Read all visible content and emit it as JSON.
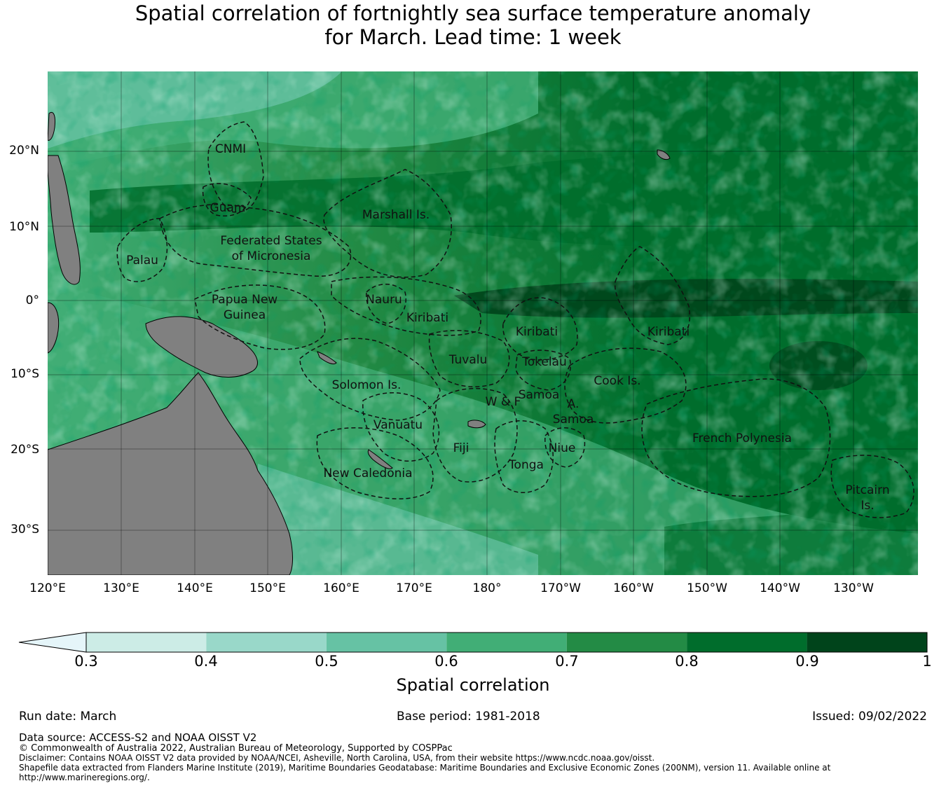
{
  "title": {
    "line1": "Spatial correlation of fortnightly sea surface temperature anomaly",
    "line2": "for March. Lead time: 1 week"
  },
  "map": {
    "lat_labels": [
      "20°N",
      "10°N",
      "0°",
      "10°S",
      "20°S",
      "30°S"
    ],
    "lon_labels": [
      "120°E",
      "130°E",
      "140°E",
      "150°E",
      "160°E",
      "170°E",
      "180°",
      "170°W",
      "160°W",
      "150°W",
      "140°W",
      "130°W"
    ],
    "regions": [
      {
        "id": "cnmi",
        "lines": [
          "CNMI"
        ]
      },
      {
        "id": "guam",
        "lines": [
          "Guam"
        ]
      },
      {
        "id": "marshall-is",
        "lines": [
          "Marshall Is."
        ]
      },
      {
        "id": "fsm",
        "lines": [
          "Federated States",
          "of Micronesia"
        ]
      },
      {
        "id": "palau",
        "lines": [
          "Palau"
        ]
      },
      {
        "id": "png",
        "lines": [
          "Papua New",
          "Guinea"
        ]
      },
      {
        "id": "nauru",
        "lines": [
          "Nauru"
        ]
      },
      {
        "id": "kiribati-west",
        "lines": [
          "Kiribati"
        ]
      },
      {
        "id": "kiribati-central",
        "lines": [
          "Kiribati"
        ]
      },
      {
        "id": "kiribati-east",
        "lines": [
          "Kiribati"
        ]
      },
      {
        "id": "tuvalu",
        "lines": [
          "Tuvalu"
        ]
      },
      {
        "id": "tokelau",
        "lines": [
          "Tokelau"
        ]
      },
      {
        "id": "cook-is",
        "lines": [
          "Cook Is."
        ]
      },
      {
        "id": "solomon-is",
        "lines": [
          "Solomon Is."
        ]
      },
      {
        "id": "samoa",
        "lines": [
          "Samoa"
        ]
      },
      {
        "id": "w-and-f",
        "lines": [
          "W & F"
        ]
      },
      {
        "id": "a-samoa",
        "lines": [
          "A.",
          "Samoa"
        ]
      },
      {
        "id": "vanuatu",
        "lines": [
          "Vanuatu"
        ]
      },
      {
        "id": "fiji",
        "lines": [
          "Fiji"
        ]
      },
      {
        "id": "niue",
        "lines": [
          "Niue"
        ]
      },
      {
        "id": "tonga",
        "lines": [
          "Tonga"
        ]
      },
      {
        "id": "new-caledonia",
        "lines": [
          "New Caledonia"
        ]
      },
      {
        "id": "french-polynesia",
        "lines": [
          "French Polynesia"
        ]
      },
      {
        "id": "pitcairn-is",
        "lines": [
          "Pitcairn",
          "Is."
        ]
      }
    ]
  },
  "colorbar": {
    "label": "Spatial correlation",
    "ticks": [
      "0.3",
      "0.4",
      "0.5",
      "0.6",
      "0.7",
      "0.8",
      "0.9",
      "1"
    ],
    "colors": [
      "#e5f5f9",
      "#ccece6",
      "#99d8c9",
      "#66c2a4",
      "#41ae76",
      "#238b45",
      "#006d2c",
      "#00441b"
    ],
    "land_color": "#808080"
  },
  "info": {
    "run_date": "Run date: March",
    "base_period": "Base period: 1981-2018",
    "issued": "Issued: 09/02/2022"
  },
  "footer": {
    "data_source": "Data source: ACCESS-S2 and NOAA OISST V2",
    "copyright": "© Commonwealth of Australia 2022, Australian Bureau of Meteorology, Supported by COSPPac",
    "disclaimer": "Disclaimer: Contains NOAA OISST V2 data provided by NOAA/NCEI, Asheville, North Carolina, USA, from their website https://www.ncdc.noaa.gov/oisst.",
    "shapefile_1": "Shapefile data extracted from Flanders Marine Institute (2019), Maritime Boundaries Geodatabase: Maritime Boundaries and Exclusive Economic Zones (200NM), version 11. Available online at",
    "shapefile_2": "http://www.marineregions.org/."
  }
}
